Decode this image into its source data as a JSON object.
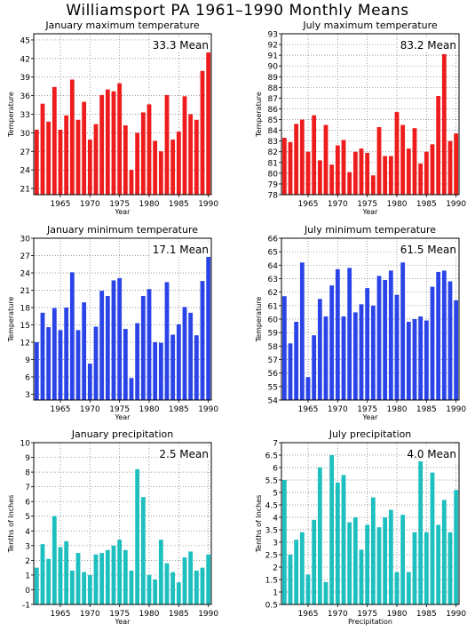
{
  "title": "Williamsport PA   1961–1990 Monthly Means",
  "colors": {
    "max": "#ee1c1c",
    "min": "#2a44e8",
    "precip": "#1ebfbf"
  },
  "chart_data": [
    {
      "type": "bar",
      "title": "January maximum temperature",
      "xlabel": "Year",
      "ylabel": "Temperature",
      "ylim": [
        20,
        46
      ],
      "yticks": [
        21,
        24,
        27,
        30,
        33,
        36,
        39,
        42,
        45
      ],
      "xticks": [
        1965,
        1970,
        1975,
        1980,
        1985,
        1990
      ],
      "mean_label": "33.3 Mean",
      "color_key": "max",
      "years": [
        1961,
        1962,
        1963,
        1964,
        1965,
        1966,
        1967,
        1968,
        1969,
        1970,
        1971,
        1972,
        1973,
        1974,
        1975,
        1976,
        1977,
        1978,
        1979,
        1980,
        1981,
        1982,
        1983,
        1984,
        1985,
        1986,
        1987,
        1988,
        1989,
        1990
      ],
      "values": [
        30.5,
        34.7,
        31.8,
        37.4,
        30.5,
        32.8,
        38.6,
        32.1,
        35.0,
        28.9,
        31.4,
        36.1,
        37.0,
        36.7,
        38.0,
        31.2,
        24.0,
        30.0,
        33.3,
        34.6,
        28.7,
        27.0,
        36.1,
        28.9,
        30.2,
        35.9,
        33.0,
        32.1,
        40.0,
        43.5
      ]
    },
    {
      "type": "bar",
      "title": "July maximum temperature",
      "xlabel": "Year",
      "ylabel": "Temperature",
      "ylim": [
        78,
        93
      ],
      "yticks": [
        78,
        79,
        80,
        81,
        82,
        83,
        84,
        85,
        86,
        87,
        88,
        89,
        90,
        91,
        92,
        93
      ],
      "xticks": [
        1965,
        1970,
        1975,
        1980,
        1985,
        1990
      ],
      "mean_label": "83.2 Mean",
      "color_key": "max",
      "years": [
        1961,
        1962,
        1963,
        1964,
        1965,
        1966,
        1967,
        1968,
        1969,
        1970,
        1971,
        1972,
        1973,
        1974,
        1975,
        1976,
        1977,
        1978,
        1979,
        1980,
        1981,
        1982,
        1983,
        1984,
        1985,
        1986,
        1987,
        1988,
        1989,
        1990
      ],
      "values": [
        83.3,
        82.9,
        84.6,
        85.0,
        82.0,
        85.4,
        81.2,
        84.5,
        80.8,
        82.6,
        83.1,
        80.1,
        82.0,
        82.3,
        81.9,
        79.8,
        84.3,
        81.6,
        81.6,
        85.7,
        84.5,
        82.3,
        84.2,
        80.9,
        82.0,
        82.7,
        87.2,
        91.1,
        83.0,
        83.7
      ]
    },
    {
      "type": "bar",
      "title": "January minimum temperature",
      "xlabel": "Year",
      "ylabel": "Temperature",
      "ylim": [
        2,
        30
      ],
      "yticks": [
        3,
        6,
        9,
        12,
        15,
        18,
        21,
        24,
        27,
        30
      ],
      "xticks": [
        1965,
        1970,
        1975,
        1980,
        1985,
        1990
      ],
      "mean_label": "17.1 Mean",
      "color_key": "min",
      "years": [
        1961,
        1962,
        1963,
        1964,
        1965,
        1966,
        1967,
        1968,
        1969,
        1970,
        1971,
        1972,
        1973,
        1974,
        1975,
        1976,
        1977,
        1978,
        1979,
        1980,
        1981,
        1982,
        1983,
        1984,
        1985,
        1986,
        1987,
        1988,
        1989,
        1990
      ],
      "values": [
        12.0,
        17.1,
        14.6,
        17.9,
        14.1,
        18.0,
        24.1,
        14.1,
        18.9,
        8.3,
        14.7,
        20.9,
        20.0,
        22.7,
        23.1,
        14.3,
        5.8,
        15.3,
        20.0,
        21.2,
        12.0,
        11.9,
        22.4,
        13.3,
        15.1,
        18.1,
        17.1,
        13.2,
        22.6,
        27.4
      ]
    },
    {
      "type": "bar",
      "title": "July minimum temperature",
      "xlabel": "Year",
      "ylabel": "Temperature",
      "ylim": [
        54,
        66
      ],
      "yticks": [
        54,
        55,
        56,
        57,
        58,
        59,
        60,
        61,
        62,
        63,
        64,
        65,
        66
      ],
      "xticks": [
        1965,
        1970,
        1975,
        1980,
        1985,
        1990
      ],
      "mean_label": "61.5 Mean",
      "color_key": "min",
      "years": [
        1961,
        1962,
        1963,
        1964,
        1965,
        1966,
        1967,
        1968,
        1969,
        1970,
        1971,
        1972,
        1973,
        1974,
        1975,
        1976,
        1977,
        1978,
        1979,
        1980,
        1981,
        1982,
        1983,
        1984,
        1985,
        1986,
        1987,
        1988,
        1989,
        1990
      ],
      "values": [
        61.7,
        58.2,
        59.8,
        64.2,
        55.7,
        58.8,
        61.5,
        60.2,
        62.5,
        63.7,
        60.2,
        63.8,
        60.5,
        61.1,
        62.3,
        61.0,
        63.2,
        62.9,
        63.6,
        61.8,
        64.2,
        59.8,
        60.0,
        60.2,
        59.9,
        62.4,
        63.5,
        63.6,
        62.8,
        61.4
      ]
    },
    {
      "type": "bar",
      "title": "January precipitation",
      "xlabel": "Year",
      "ylabel": "Tenths of Inches",
      "ylim": [
        -1,
        10
      ],
      "yticks": [
        -1,
        0,
        1,
        2,
        3,
        4,
        5,
        6,
        7,
        8,
        9,
        10
      ],
      "xticks": [
        1965,
        1970,
        1975,
        1980,
        1985,
        1990
      ],
      "mean_label": "2.5 Mean",
      "color_key": "precip",
      "years": [
        1961,
        1962,
        1963,
        1964,
        1965,
        1966,
        1967,
        1968,
        1969,
        1970,
        1971,
        1972,
        1973,
        1974,
        1975,
        1976,
        1977,
        1978,
        1979,
        1980,
        1981,
        1982,
        1983,
        1984,
        1985,
        1986,
        1987,
        1988,
        1989,
        1990
      ],
      "values": [
        1.5,
        3.1,
        2.1,
        5.0,
        2.9,
        3.3,
        1.3,
        2.5,
        1.2,
        1.0,
        2.4,
        2.5,
        2.7,
        3.0,
        3.4,
        2.7,
        1.3,
        8.2,
        6.3,
        1.0,
        0.7,
        3.4,
        1.8,
        1.2,
        0.5,
        2.2,
        2.6,
        1.3,
        1.5,
        2.4
      ]
    },
    {
      "type": "bar",
      "title": "July precipitation",
      "xlabel": "Precipitation",
      "ylabel": "Tenths of Inches",
      "ylim": [
        0.5,
        7
      ],
      "yticks": [
        0.5,
        1,
        1.5,
        2,
        2.5,
        3,
        3.5,
        4,
        4.5,
        5,
        5.5,
        6,
        6.5,
        7
      ],
      "xticks": [
        1965,
        1970,
        1975,
        1980,
        1985,
        1990
      ],
      "mean_label": "4.0 Mean",
      "color_key": "precip",
      "years": [
        1961,
        1962,
        1963,
        1964,
        1965,
        1966,
        1967,
        1968,
        1969,
        1970,
        1971,
        1972,
        1973,
        1974,
        1975,
        1976,
        1977,
        1978,
        1979,
        1980,
        1981,
        1982,
        1983,
        1984,
        1985,
        1986,
        1987,
        1988,
        1989,
        1990
      ],
      "values": [
        5.5,
        2.5,
        3.1,
        3.4,
        1.7,
        3.9,
        6.0,
        1.4,
        6.5,
        5.4,
        5.7,
        3.8,
        4.0,
        2.7,
        3.7,
        4.8,
        3.6,
        4.0,
        4.3,
        1.8,
        4.1,
        1.8,
        3.4,
        6.4,
        3.4,
        5.8,
        3.7,
        4.7,
        3.4,
        5.1
      ]
    }
  ]
}
